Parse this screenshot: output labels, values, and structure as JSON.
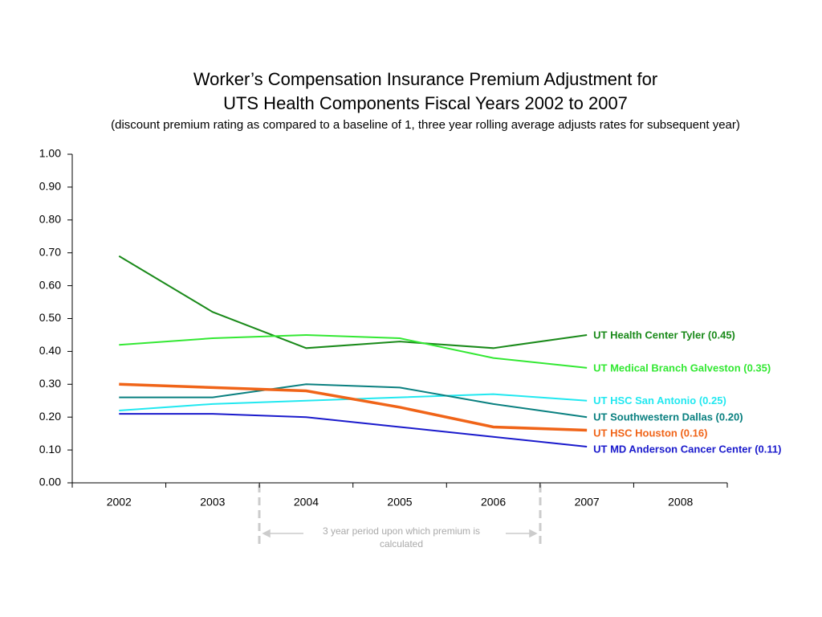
{
  "chart_data": {
    "type": "line",
    "title": [
      "Worker’s Compensation Insurance Premium Adjustment for",
      "UTS Health Components Fiscal Years 2002 to 2007"
    ],
    "subtitle": "(discount premium rating as compared to a baseline of 1, three year rolling average adjusts rates for subsequent year)",
    "annotation": "3 year period upon which premium is calculated",
    "categories": [
      "2002",
      "2003",
      "2004",
      "2005",
      "2006",
      "2007",
      "2008"
    ],
    "ylim": [
      0,
      1
    ],
    "yticks": [
      {
        "value": 0,
        "label": "0.00"
      },
      {
        "value": 0.1,
        "label": "0.10"
      },
      {
        "value": 0.2,
        "label": "0.20"
      },
      {
        "value": 0.3,
        "label": "0.30"
      },
      {
        "value": 0.4,
        "label": "0.40"
      },
      {
        "value": 0.5,
        "label": "0.50"
      },
      {
        "value": 0.6,
        "label": "0.60"
      },
      {
        "value": 0.7,
        "label": "0.70"
      },
      {
        "value": 0.8,
        "label": "0.80"
      },
      {
        "value": 0.9,
        "label": "0.90"
      },
      {
        "value": 1,
        "label": "1.00"
      }
    ],
    "series": [
      {
        "name": "UT Health Center Tyler (0.45)",
        "color": "#1a8a1a",
        "values": [
          0.69,
          0.52,
          0.41,
          0.43,
          0.41,
          0.45,
          null
        ]
      },
      {
        "name": "UT Medical Branch Galveston (0.35)",
        "color": "#33e833",
        "values": [
          0.42,
          0.44,
          0.45,
          0.44,
          0.38,
          0.35,
          null
        ]
      },
      {
        "name": "UT HSC San Antonio (0.25)",
        "color": "#22e8f0",
        "values": [
          0.22,
          0.24,
          0.25,
          0.26,
          0.27,
          0.25,
          null
        ]
      },
      {
        "name": "UT Southwestern Dallas (0.20)",
        "color": "#0a8080",
        "values": [
          0.26,
          0.26,
          0.3,
          0.29,
          0.24,
          0.2,
          null
        ]
      },
      {
        "name": "UT HSC Houston (0.16)",
        "color": "#f06418",
        "values": [
          0.3,
          0.29,
          0.28,
          0.23,
          0.17,
          0.16,
          null
        ]
      },
      {
        "name": "UT MD Anderson Cancer Center (0.11)",
        "color": "#1a1acc",
        "values": [
          0.21,
          0.21,
          0.2,
          0.17,
          0.14,
          0.11,
          null
        ]
      }
    ]
  }
}
